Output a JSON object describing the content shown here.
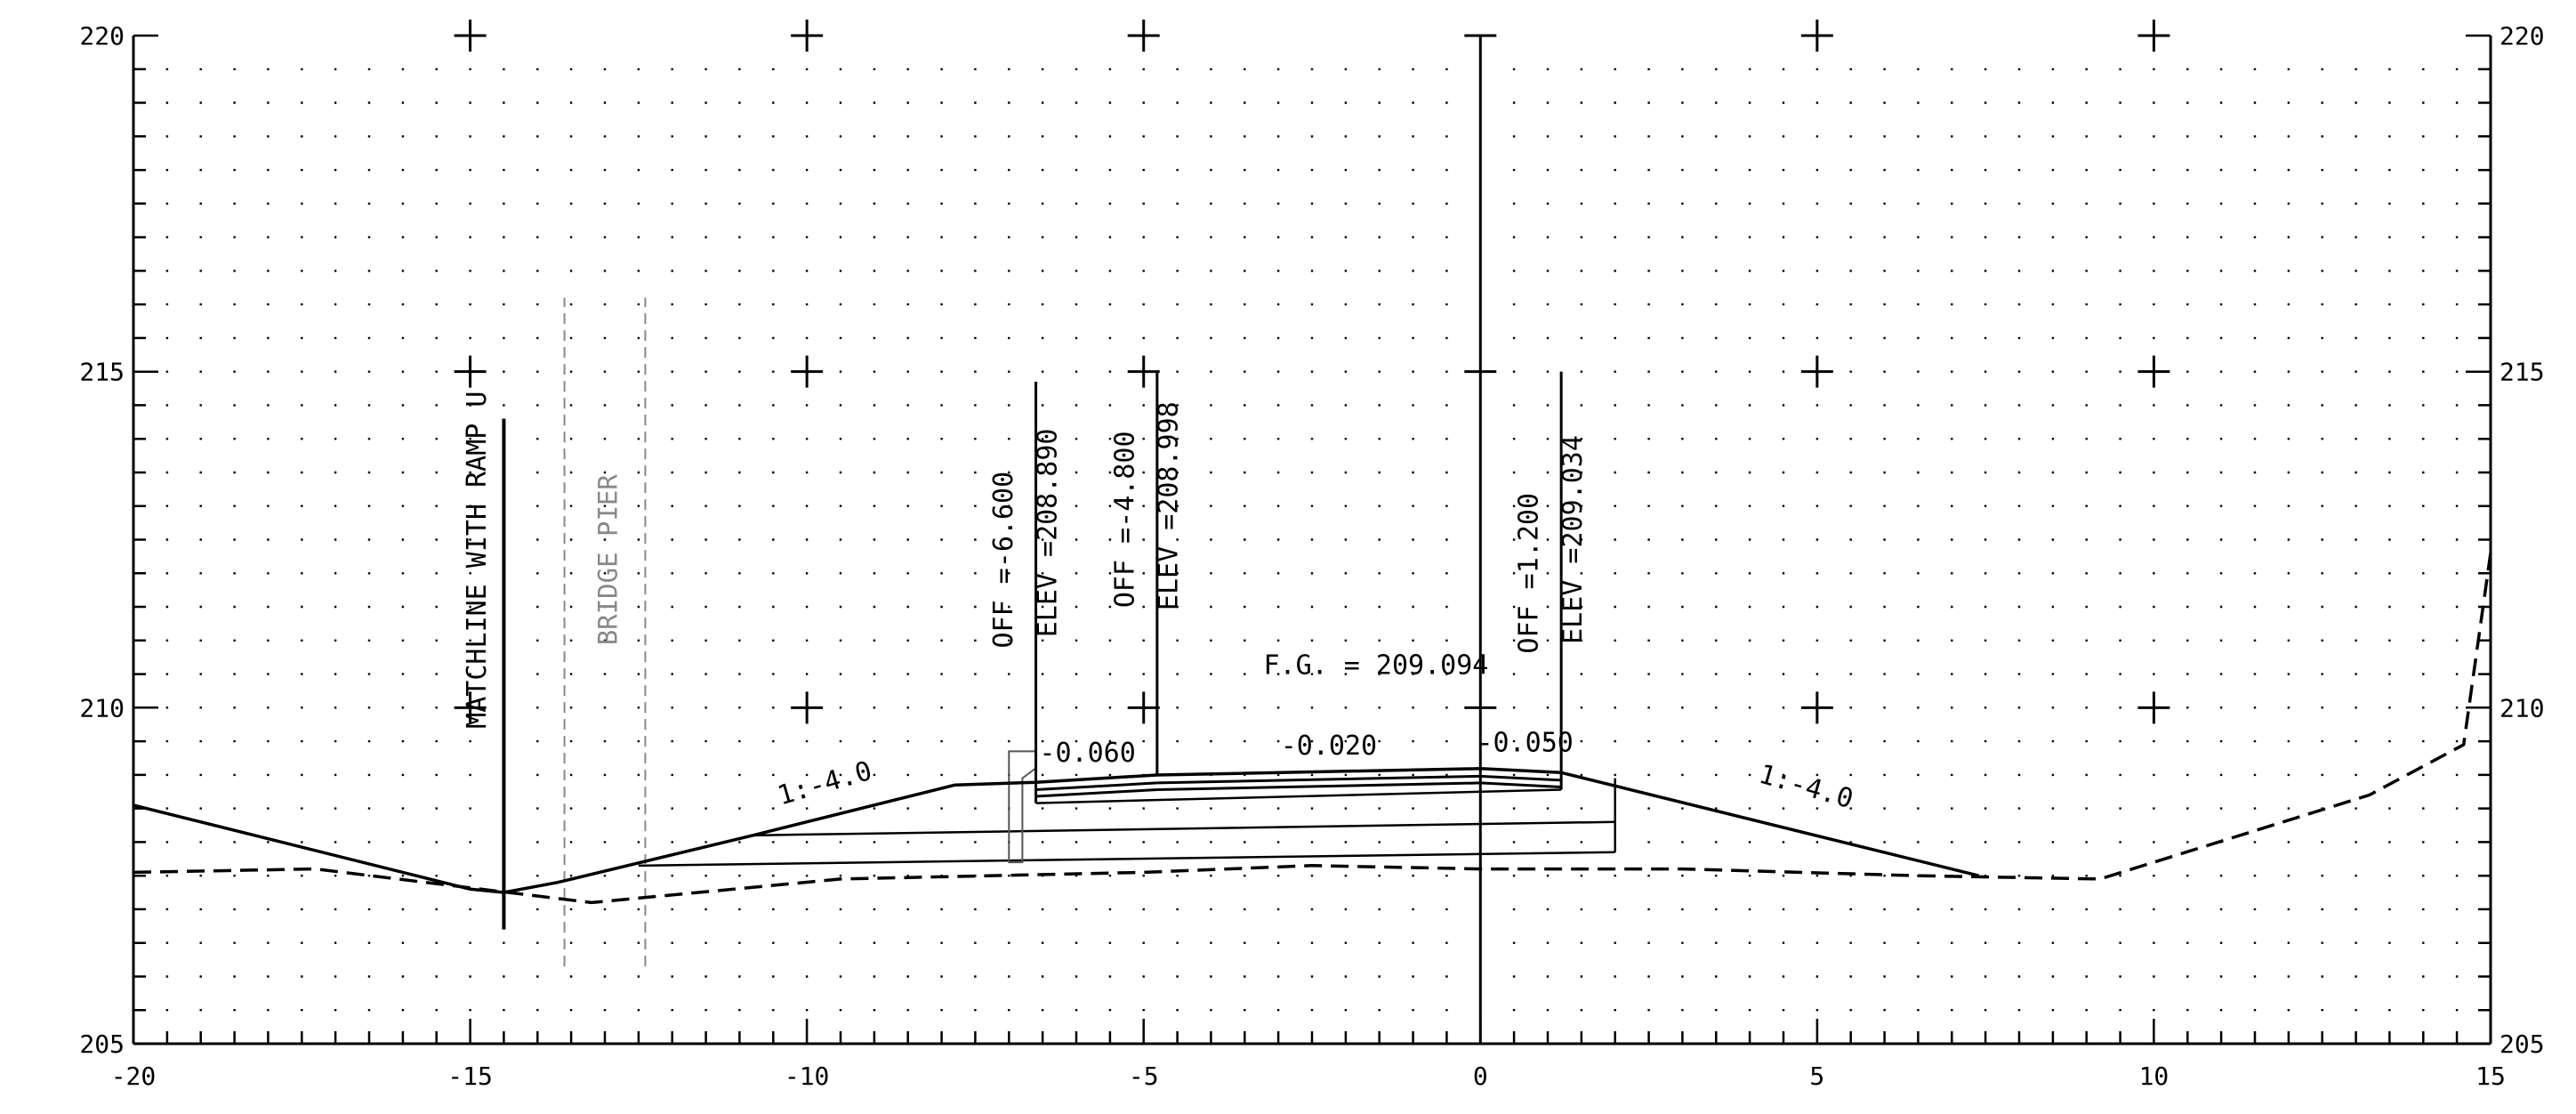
{
  "chart_data": {
    "type": "cross-section",
    "title": "",
    "xlabel": "",
    "ylabel": "",
    "xlim": [
      -20,
      15
    ],
    "ylim": [
      205,
      220
    ],
    "x_ticks": [
      "-20",
      "-15",
      "-10",
      "-5",
      "0",
      "5",
      "10",
      "15"
    ],
    "y_ticks_left": [
      "205",
      "210",
      "215",
      "220"
    ],
    "y_ticks_right": [
      "205",
      "210",
      "215",
      "220"
    ],
    "grid": "dotted",
    "series": [
      {
        "style": "solid",
        "points": [
          [
            -20,
            208.55
          ],
          [
            -15,
            207.3
          ],
          [
            -14.5,
            207.25
          ],
          [
            -13.7,
            207.4
          ],
          [
            -10.8,
            208.1
          ],
          [
            -7.8,
            208.85
          ],
          [
            -6.6,
            208.89
          ],
          [
            -4.8,
            208.998
          ],
          [
            0,
            209.094
          ],
          [
            1.2,
            209.034
          ],
          [
            7.4,
            207.5
          ]
        ]
      },
      {
        "style": "dashed",
        "points": [
          [
            -20,
            207.55
          ],
          [
            -17.3,
            207.6
          ],
          [
            -13.2,
            207.1
          ],
          [
            -9.5,
            207.45
          ],
          [
            -5,
            207.55
          ],
          [
            -2.5,
            207.65
          ],
          [
            0,
            207.6
          ],
          [
            3,
            207.6
          ],
          [
            6.5,
            207.5
          ],
          [
            9.2,
            207.45
          ],
          [
            13.2,
            208.7
          ],
          [
            14.6,
            209.45
          ],
          [
            15,
            212.3
          ]
        ]
      }
    ],
    "annotations": [
      {
        "id": "matchline",
        "text": "MATCHLINE WITH RAMP U"
      },
      {
        "id": "pier",
        "text": "BRIDGE PIER"
      },
      {
        "id": "off_left",
        "text": "OFF =-6.600"
      },
      {
        "id": "elev_left",
        "text": "ELEV =208.890"
      },
      {
        "id": "off_mid",
        "text": "OFF =-4.800"
      },
      {
        "id": "elev_mid",
        "text": "ELEV =208.998"
      },
      {
        "id": "off_right",
        "text": "OFF =1.200"
      },
      {
        "id": "elev_right",
        "text": "ELEV =209.034"
      },
      {
        "id": "fg",
        "text": "F.G. = 209.094"
      },
      {
        "id": "slope_left",
        "text": "-0.060"
      },
      {
        "id": "slope_mid",
        "text": "-0.020"
      },
      {
        "id": "slope_right",
        "text": "-0.050"
      },
      {
        "id": "ratio_left",
        "text": "1:-4.0"
      },
      {
        "id": "ratio_right",
        "text": "1:-4.0"
      }
    ]
  }
}
